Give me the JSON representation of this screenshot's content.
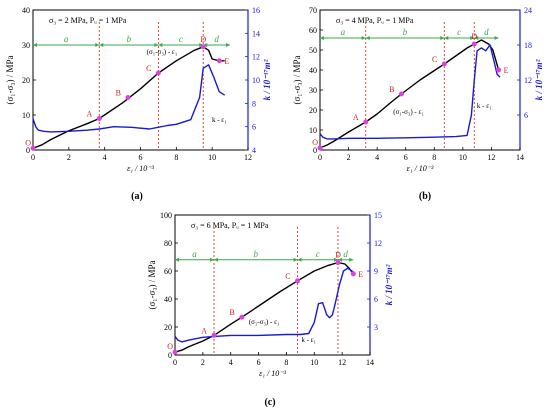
{
  "colors": {
    "stress": "#000000",
    "perm": "#1a1ad6",
    "marker": "#e040e0",
    "guide": "#e03020",
    "phase": "#3aa84a"
  },
  "chart_data": [
    {
      "panel_label": "(a)",
      "type": "line",
      "subtitle": "σ₃ = 2 MPa, Pᵤ = 1 MPa",
      "xlabel": "ε₁ / 10⁻³",
      "ylabel_left": "(σ₁-σ₃) / MPa",
      "ylabel_right": "k / 10⁻¹⁷m²",
      "xlim": [
        0,
        12
      ],
      "ylim_left": [
        0,
        40
      ],
      "ylim_right": [
        4,
        16
      ],
      "xticks": [
        0,
        2,
        4,
        6,
        8,
        10,
        12
      ],
      "yticks_left": [
        0,
        10,
        20,
        30,
        40
      ],
      "yticks_right": [
        4,
        6,
        8,
        10,
        12,
        14,
        16
      ],
      "phase_y": 30,
      "phases": [
        {
          "label": "a",
          "from": 0,
          "to": 3.7
        },
        {
          "label": "b",
          "from": 3.7,
          "to": 7.0
        },
        {
          "label": "c",
          "from": 7.0,
          "to": 9.5
        },
        {
          "label": "d",
          "from": 9.5,
          "to": 11.0
        }
      ],
      "guides": [
        3.7,
        7.0,
        9.5
      ],
      "points": [
        {
          "label": "O",
          "x": 0.0,
          "y": 0.5
        },
        {
          "label": "A",
          "x": 3.7,
          "y": 9.0
        },
        {
          "label": "B",
          "x": 5.3,
          "y": 15.0
        },
        {
          "label": "C",
          "x": 7.0,
          "y": 22.0
        },
        {
          "label": "D",
          "x": 9.5,
          "y": 29.5
        },
        {
          "label": "E",
          "x": 10.4,
          "y": 25.5
        }
      ],
      "series": [
        {
          "name": "(σ₁-σ₃) - ε₁",
          "axis": "left",
          "x": [
            0,
            0.5,
            1,
            2,
            3,
            3.7,
            5,
            6,
            7,
            8,
            9,
            9.5,
            9.8,
            10,
            10.4,
            10.7
          ],
          "y": [
            0.5,
            1.5,
            3,
            5.5,
            7.5,
            9,
            13.5,
            17.5,
            22,
            25.5,
            28.5,
            29.5,
            28.5,
            26,
            25.5,
            25.5
          ]
        },
        {
          "name": "k - ε₁",
          "axis": "right",
          "x": [
            0,
            0.15,
            0.3,
            0.6,
            1,
            2,
            3,
            3.7,
            4.5,
            5.5,
            6.5,
            7.5,
            8,
            8.8,
            9.3,
            9.5,
            9.8,
            10.1,
            10.4,
            10.7
          ],
          "y": [
            6.7,
            6.0,
            5.7,
            5.6,
            5.55,
            5.6,
            5.7,
            5.8,
            6.0,
            5.95,
            5.8,
            6.1,
            6.2,
            6.6,
            8.5,
            11.0,
            11.3,
            10.2,
            9.0,
            8.7
          ]
        }
      ],
      "annotations": [
        {
          "text": "(σ₁-σ₃) - ε₁",
          "x": 7.2,
          "y": 27.5,
          "axis": "left"
        },
        {
          "text": "k - ε₁",
          "x": 10.4,
          "y": 6.4,
          "axis": "right"
        }
      ]
    },
    {
      "panel_label": "(b)",
      "type": "line",
      "subtitle": "σ₃ = 4 MPa, Pᵤ = 1 MPa",
      "xlabel": "ε₁ / 10⁻³",
      "ylabel_left": "(σ₁-σ₃) / MPa",
      "ylabel_right": "k / 10⁻¹⁷m²",
      "xlim": [
        0,
        14
      ],
      "ylim_left": [
        0,
        70
      ],
      "ylim_right": [
        0,
        24
      ],
      "xticks": [
        0,
        2,
        4,
        6,
        8,
        10,
        12,
        14
      ],
      "yticks_left": [
        0,
        10,
        20,
        30,
        40,
        50,
        60,
        70
      ],
      "yticks_right": [
        6,
        12,
        18,
        24
      ],
      "phase_y": 56,
      "phases": [
        {
          "label": "a",
          "from": 0,
          "to": 3.2
        },
        {
          "label": "b",
          "from": 3.2,
          "to": 8.7
        },
        {
          "label": "c",
          "from": 8.7,
          "to": 10.8
        },
        {
          "label": "d",
          "from": 10.8,
          "to": 12.5
        }
      ],
      "guides": [
        3.2,
        8.7,
        10.8
      ],
      "points": [
        {
          "label": "O",
          "x": 0.0,
          "y": 1.0
        },
        {
          "label": "A",
          "x": 3.2,
          "y": 14.0
        },
        {
          "label": "B",
          "x": 5.7,
          "y": 28.0
        },
        {
          "label": "C",
          "x": 8.7,
          "y": 43.0
        },
        {
          "label": "D",
          "x": 10.8,
          "y": 53.0
        },
        {
          "label": "E",
          "x": 12.5,
          "y": 40.0
        }
      ],
      "series": [
        {
          "name": "(σ₁-σ₃) - ε₁",
          "axis": "left",
          "x": [
            0,
            0.5,
            1,
            2,
            3.2,
            4,
            5,
            5.7,
            7,
            8.7,
            9.5,
            10.3,
            10.8,
            11.3,
            11.8,
            12.1,
            12.3,
            12.5
          ],
          "y": [
            1,
            2.5,
            4.5,
            9,
            14,
            18,
            24,
            28,
            35,
            43,
            47,
            51,
            53,
            55,
            53,
            50,
            45,
            40
          ]
        },
        {
          "name": "k - ε₁",
          "axis": "right",
          "x": [
            0,
            0.2,
            0.5,
            1,
            2,
            4,
            6,
            8,
            9.5,
            10.3,
            10.6,
            10.8,
            11.0,
            11.3,
            11.6,
            11.9,
            12.2,
            12.4,
            12.6
          ],
          "y": [
            2.8,
            2.2,
            1.9,
            1.9,
            2.0,
            2.0,
            2.1,
            2.2,
            2.3,
            2.5,
            6.0,
            12.0,
            17.0,
            17.5,
            17.0,
            18.0,
            15.0,
            13.0,
            12.5
          ]
        }
      ],
      "annotations": [
        {
          "text": "(σ₁-σ₃) - ε₁",
          "x": 6.2,
          "y": 18.0,
          "axis": "left"
        },
        {
          "text": "k - ε₁",
          "x": 11.5,
          "y": 7.2,
          "axis": "right"
        }
      ]
    },
    {
      "panel_label": "(c)",
      "type": "line",
      "subtitle": "σ₃ = 6 MPa, Pᵤ = 1 MPa",
      "xlabel": "ε₁ / 10⁻³",
      "ylabel_left": "(σ₁-σ₃) / MPa",
      "ylabel_right": "k / 10⁻¹⁷m²",
      "xlim": [
        0,
        14
      ],
      "ylim_left": [
        0,
        100
      ],
      "ylim_right": [
        0,
        15
      ],
      "xticks": [
        0,
        2,
        4,
        6,
        8,
        10,
        12,
        14
      ],
      "yticks_left": [
        0,
        20,
        40,
        60,
        80,
        100
      ],
      "yticks_right": [
        3,
        6,
        9,
        12,
        15
      ],
      "phase_y": 68,
      "phases": [
        {
          "label": "a",
          "from": 0,
          "to": 2.8
        },
        {
          "label": "b",
          "from": 2.8,
          "to": 8.8
        },
        {
          "label": "c",
          "from": 8.8,
          "to": 11.7
        },
        {
          "label": "d",
          "from": 11.7,
          "to": 12.8
        }
      ],
      "guides": [
        2.8,
        8.8,
        11.7
      ],
      "points": [
        {
          "label": "O",
          "x": 0.0,
          "y": 2.0
        },
        {
          "label": "A",
          "x": 2.8,
          "y": 14.0
        },
        {
          "label": "B",
          "x": 4.8,
          "y": 27.0
        },
        {
          "label": "C",
          "x": 8.8,
          "y": 53.0
        },
        {
          "label": "D",
          "x": 11.7,
          "y": 66.0
        },
        {
          "label": "E",
          "x": 12.8,
          "y": 58.0
        }
      ],
      "series": [
        {
          "name": "(σ₁-σ₃) - ε₁",
          "axis": "left",
          "x": [
            0,
            0.5,
            1,
            2,
            2.8,
            4,
            4.8,
            6,
            7.5,
            8.8,
            10,
            11,
            11.7,
            12.2,
            12.5,
            12.8
          ],
          "y": [
            2,
            3.5,
            6,
            10,
            14,
            22,
            27,
            35,
            45,
            53,
            60,
            64,
            66,
            65,
            62,
            58
          ]
        },
        {
          "name": "k - ε₁",
          "axis": "right",
          "x": [
            0,
            0.2,
            0.5,
            1,
            2,
            3,
            4,
            6,
            8,
            9,
            9.6,
            10.0,
            10.3,
            10.6,
            10.9,
            11.1,
            11.3,
            11.5,
            11.8,
            12.1,
            12.4,
            12.7,
            12.9
          ],
          "y": [
            2.0,
            1.6,
            1.4,
            1.6,
            1.9,
            2.0,
            2.1,
            2.1,
            2.2,
            2.2,
            2.3,
            3.5,
            5.5,
            5.6,
            4.3,
            4.0,
            4.3,
            5.5,
            7.5,
            9.0,
            9.3,
            9.0,
            8.8
          ]
        }
      ],
      "annotations": [
        {
          "text": "(σ₁-σ₃) - ε₁",
          "x": 6.4,
          "y": 22.0,
          "axis": "left"
        },
        {
          "text": "k - ε₁",
          "x": 9.6,
          "y": 1.4,
          "axis": "right"
        }
      ]
    }
  ]
}
